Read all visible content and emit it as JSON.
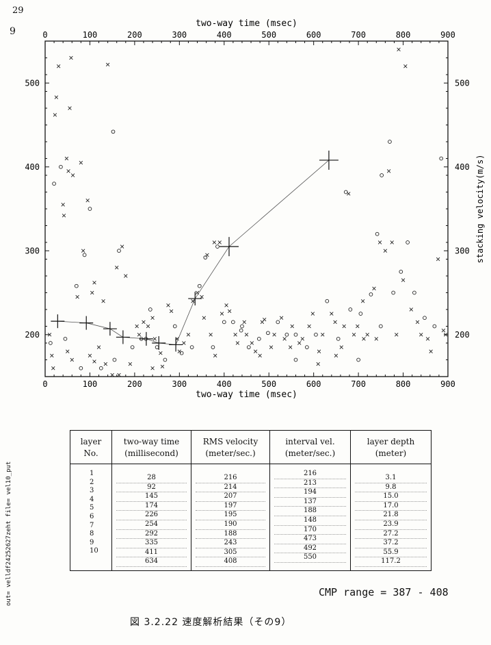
{
  "header": {
    "page_mark": "29",
    "panel_number": "9"
  },
  "chart_data": {
    "type": "scatter",
    "xlabel": "two-way time (msec)",
    "ylabel": "stacking velocity(m/s)",
    "xlim": [
      0,
      900
    ],
    "ylim": [
      150,
      550
    ],
    "x_ticks": [
      0,
      100,
      200,
      300,
      400,
      500,
      600,
      700,
      800,
      900
    ],
    "y_ticks": [
      200,
      300,
      400,
      500
    ],
    "picked_points": [
      {
        "x": 28,
        "y": 216
      },
      {
        "x": 92,
        "y": 214
      },
      {
        "x": 145,
        "y": 207
      },
      {
        "x": 174,
        "y": 197
      },
      {
        "x": 226,
        "y": 195
      },
      {
        "x": 254,
        "y": 190
      },
      {
        "x": 292,
        "y": 188
      },
      {
        "x": 335,
        "y": 243
      },
      {
        "x": 411,
        "y": 305
      },
      {
        "x": 634,
        "y": 408
      }
    ],
    "scatter_points": [
      [
        20,
        380,
        "o"
      ],
      [
        22,
        462,
        "x"
      ],
      [
        25,
        483,
        "x"
      ],
      [
        30,
        520,
        "x"
      ],
      [
        35,
        400,
        "o"
      ],
      [
        40,
        355,
        "x"
      ],
      [
        42,
        342,
        "x"
      ],
      [
        48,
        410,
        "x"
      ],
      [
        52,
        395,
        "x"
      ],
      [
        55,
        470,
        "x"
      ],
      [
        58,
        530,
        "x"
      ],
      [
        62,
        390,
        "x"
      ],
      [
        70,
        258,
        "o"
      ],
      [
        72,
        245,
        "x"
      ],
      [
        80,
        405,
        "x"
      ],
      [
        85,
        300,
        "x"
      ],
      [
        88,
        295,
        "o"
      ],
      [
        95,
        360,
        "x"
      ],
      [
        100,
        350,
        "o"
      ],
      [
        105,
        250,
        "x"
      ],
      [
        110,
        262,
        "x"
      ],
      [
        130,
        240,
        "x"
      ],
      [
        140,
        522,
        "x"
      ],
      [
        152,
        442,
        "o"
      ],
      [
        160,
        280,
        "x"
      ],
      [
        165,
        300,
        "o"
      ],
      [
        172,
        305,
        "x"
      ],
      [
        180,
        270,
        "x"
      ],
      [
        10,
        200,
        "x"
      ],
      [
        12,
        190,
        "o"
      ],
      [
        15,
        175,
        "x"
      ],
      [
        18,
        160,
        "x"
      ],
      [
        45,
        195,
        "o"
      ],
      [
        50,
        180,
        "x"
      ],
      [
        60,
        170,
        "x"
      ],
      [
        80,
        160,
        "o"
      ],
      [
        100,
        175,
        "x"
      ],
      [
        110,
        168,
        "x"
      ],
      [
        120,
        185,
        "x"
      ],
      [
        125,
        160,
        "o"
      ],
      [
        135,
        165,
        "x"
      ],
      [
        150,
        152,
        "x"
      ],
      [
        155,
        170,
        "o"
      ],
      [
        165,
        152,
        "x"
      ],
      [
        190,
        165,
        "x"
      ],
      [
        195,
        185,
        "o"
      ],
      [
        205,
        210,
        "x"
      ],
      [
        210,
        200,
        "x"
      ],
      [
        215,
        195,
        "o"
      ],
      [
        220,
        215,
        "x"
      ],
      [
        230,
        210,
        "x"
      ],
      [
        235,
        230,
        "o"
      ],
      [
        240,
        220,
        "x"
      ],
      [
        245,
        195,
        "x"
      ],
      [
        250,
        185,
        "o"
      ],
      [
        258,
        178,
        "x"
      ],
      [
        262,
        162,
        "x"
      ],
      [
        268,
        170,
        "o"
      ],
      [
        275,
        235,
        "x"
      ],
      [
        282,
        228,
        "x"
      ],
      [
        290,
        210,
        "o"
      ],
      [
        295,
        195,
        "x"
      ],
      [
        300,
        180,
        "x"
      ],
      [
        305,
        178,
        "o"
      ],
      [
        310,
        190,
        "x"
      ],
      [
        320,
        200,
        "x"
      ],
      [
        328,
        185,
        "o"
      ],
      [
        340,
        250,
        "x"
      ],
      [
        345,
        258,
        "o"
      ],
      [
        350,
        245,
        "x"
      ],
      [
        355,
        220,
        "x"
      ],
      [
        358,
        292,
        "o"
      ],
      [
        362,
        295,
        "x"
      ],
      [
        370,
        200,
        "x"
      ],
      [
        375,
        185,
        "o"
      ],
      [
        378,
        310,
        "x"
      ],
      [
        385,
        305,
        "o"
      ],
      [
        390,
        310,
        "x"
      ],
      [
        395,
        225,
        "x"
      ],
      [
        400,
        215,
        "o"
      ],
      [
        405,
        235,
        "x"
      ],
      [
        412,
        228,
        "x"
      ],
      [
        420,
        215,
        "o"
      ],
      [
        425,
        200,
        "x"
      ],
      [
        430,
        190,
        "x"
      ],
      [
        438,
        205,
        "o"
      ],
      [
        445,
        215,
        "x"
      ],
      [
        450,
        200,
        "x"
      ],
      [
        455,
        185,
        "o"
      ],
      [
        462,
        190,
        "x"
      ],
      [
        470,
        180,
        "x"
      ],
      [
        478,
        195,
        "o"
      ],
      [
        485,
        215,
        "x"
      ],
      [
        490,
        218,
        "x"
      ],
      [
        498,
        202,
        "o"
      ],
      [
        505,
        185,
        "x"
      ],
      [
        512,
        200,
        "x"
      ],
      [
        520,
        215,
        "o"
      ],
      [
        528,
        220,
        "x"
      ],
      [
        535,
        195,
        "x"
      ],
      [
        540,
        200,
        "o"
      ],
      [
        548,
        185,
        "x"
      ],
      [
        552,
        210,
        "x"
      ],
      [
        560,
        200,
        "o"
      ],
      [
        568,
        190,
        "x"
      ],
      [
        575,
        195,
        "x"
      ],
      [
        585,
        185,
        "o"
      ],
      [
        590,
        210,
        "x"
      ],
      [
        598,
        225,
        "x"
      ],
      [
        605,
        200,
        "o"
      ],
      [
        612,
        180,
        "x"
      ],
      [
        620,
        200,
        "x"
      ],
      [
        630,
        240,
        "o"
      ],
      [
        640,
        225,
        "x"
      ],
      [
        648,
        215,
        "x"
      ],
      [
        655,
        195,
        "o"
      ],
      [
        662,
        185,
        "x"
      ],
      [
        668,
        210,
        "x"
      ],
      [
        672,
        370,
        "o"
      ],
      [
        678,
        368,
        "x"
      ],
      [
        682,
        230,
        "o"
      ],
      [
        690,
        200,
        "x"
      ],
      [
        698,
        210,
        "x"
      ],
      [
        705,
        225,
        "o"
      ],
      [
        712,
        195,
        "x"
      ],
      [
        720,
        200,
        "x"
      ],
      [
        728,
        248,
        "o"
      ],
      [
        735,
        255,
        "x"
      ],
      [
        742,
        320,
        "o"
      ],
      [
        748,
        310,
        "x"
      ],
      [
        752,
        390,
        "o"
      ],
      [
        760,
        300,
        "x"
      ],
      [
        768,
        395,
        "x"
      ],
      [
        770,
        430,
        "o"
      ],
      [
        775,
        310,
        "x"
      ],
      [
        778,
        250,
        "o"
      ],
      [
        785,
        200,
        "x"
      ],
      [
        790,
        540,
        "x"
      ],
      [
        795,
        275,
        "o"
      ],
      [
        800,
        265,
        "x"
      ],
      [
        805,
        520,
        "x"
      ],
      [
        810,
        310,
        "o"
      ],
      [
        818,
        230,
        "x"
      ],
      [
        825,
        250,
        "o"
      ],
      [
        832,
        215,
        "x"
      ],
      [
        840,
        200,
        "x"
      ],
      [
        848,
        220,
        "o"
      ],
      [
        855,
        195,
        "x"
      ],
      [
        862,
        180,
        "x"
      ],
      [
        870,
        210,
        "o"
      ],
      [
        878,
        290,
        "x"
      ],
      [
        885,
        410,
        "o"
      ],
      [
        890,
        205,
        "x"
      ],
      [
        895,
        200,
        "x"
      ],
      [
        740,
        195,
        "x"
      ],
      [
        750,
        210,
        "o"
      ],
      [
        710,
        240,
        "x"
      ],
      [
        700,
        170,
        "o"
      ],
      [
        650,
        175,
        "x"
      ],
      [
        610,
        165,
        "x"
      ],
      [
        560,
        170,
        "o"
      ],
      [
        480,
        175,
        "x"
      ],
      [
        440,
        210,
        "o"
      ],
      [
        380,
        175,
        "x"
      ],
      [
        330,
        240,
        "x"
      ],
      [
        225,
        195,
        "o"
      ],
      [
        240,
        160,
        "x"
      ]
    ]
  },
  "table": {
    "headers": [
      [
        "layer",
        "No."
      ],
      [
        "two-way time",
        "(millisecond)"
      ],
      [
        "RMS velocity",
        "(meter/sec.)"
      ],
      [
        "interval vel.",
        "(meter/sec.)"
      ],
      [
        "layer depth",
        "(meter)"
      ]
    ],
    "layer_no": [
      "1",
      "2",
      "3",
      "4",
      "5",
      "6",
      "7",
      "8",
      "9",
      "10"
    ],
    "two_way_time": [
      "28",
      "92",
      "145",
      "174",
      "226",
      "254",
      "292",
      "335",
      "411",
      "634"
    ],
    "rms_velocity": [
      "216",
      "214",
      "207",
      "197",
      "195",
      "190",
      "188",
      "243",
      "305",
      "408"
    ],
    "interval_vel": [
      "216",
      "213",
      "194",
      "137",
      "188",
      "148",
      "170",
      "473",
      "492",
      "550"
    ],
    "layer_depth": [
      "3.1",
      "9.8",
      "15.0",
      "17.0",
      "21.8",
      "23.9",
      "27.2",
      "37.2",
      "55.9",
      "117.2"
    ]
  },
  "cmp_range": "CMP range = 387 - 408",
  "caption": "図 3.2.22 速度解析結果（その9）",
  "side_text": "out= velldf24252627zeht file= vel10_put"
}
